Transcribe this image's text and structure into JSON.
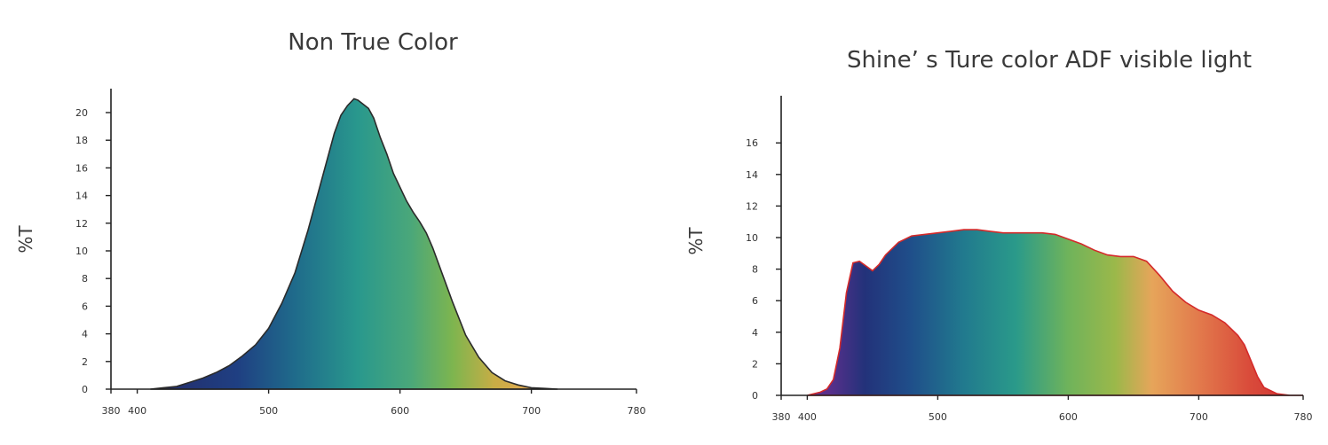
{
  "chart_data": [
    {
      "type": "area",
      "title": "Non True Color",
      "xlabel": "",
      "ylabel": "%T",
      "xlim": [
        380,
        780
      ],
      "ylim": [
        0,
        22
      ],
      "xticks": [
        380,
        400,
        500,
        600,
        700,
        780
      ],
      "yticks": [
        0,
        2,
        4,
        6,
        8,
        10,
        12,
        14,
        16,
        18,
        20
      ],
      "outline_color": "#2b2b2b",
      "grid": false,
      "series": [
        {
          "x": [
            410,
            420,
            430,
            440,
            450,
            460,
            470,
            480,
            490,
            500,
            510,
            520,
            530,
            540,
            550,
            555,
            560,
            565,
            568,
            572,
            576,
            580,
            585,
            590,
            595,
            600,
            605,
            610,
            615,
            620,
            625,
            630,
            640,
            650,
            660,
            670,
            680,
            690,
            700,
            710,
            720
          ],
          "y": [
            0.0,
            0.1,
            0.2,
            0.5,
            0.8,
            1.2,
            1.7,
            2.4,
            3.2,
            4.4,
            6.2,
            8.4,
            11.5,
            15.0,
            18.5,
            19.8,
            20.5,
            21.0,
            20.9,
            20.6,
            20.3,
            19.6,
            18.2,
            17.0,
            15.6,
            14.6,
            13.6,
            12.8,
            12.1,
            11.3,
            10.2,
            8.9,
            6.3,
            3.9,
            2.3,
            1.2,
            0.6,
            0.3,
            0.1,
            0.05,
            0.0
          ]
        }
      ]
    },
    {
      "type": "area",
      "title": "Shine’ s Ture color ADF visible light",
      "xlabel": "",
      "ylabel": "%T",
      "xlim": [
        380,
        780
      ],
      "ylim": [
        0,
        19
      ],
      "xticks": [
        380,
        400,
        500,
        600,
        700,
        780
      ],
      "yticks": [
        0,
        2,
        4,
        6,
        8,
        10,
        12,
        14,
        16
      ],
      "outline_color": "#d42a2a",
      "grid": false,
      "series": [
        {
          "x": [
            400,
            410,
            415,
            420,
            425,
            430,
            435,
            440,
            445,
            450,
            455,
            460,
            470,
            480,
            490,
            500,
            510,
            520,
            530,
            540,
            550,
            560,
            570,
            580,
            590,
            600,
            610,
            620,
            630,
            640,
            650,
            660,
            670,
            680,
            690,
            700,
            710,
            720,
            730,
            735,
            740,
            745,
            750,
            760,
            770,
            780
          ],
          "y": [
            0.0,
            0.2,
            0.4,
            1.0,
            3.0,
            6.5,
            8.4,
            8.5,
            8.2,
            7.9,
            8.3,
            8.9,
            9.7,
            10.1,
            10.2,
            10.3,
            10.4,
            10.5,
            10.5,
            10.4,
            10.3,
            10.3,
            10.3,
            10.3,
            10.2,
            9.9,
            9.6,
            9.2,
            8.9,
            8.8,
            8.8,
            8.5,
            7.6,
            6.6,
            5.9,
            5.4,
            5.1,
            4.6,
            3.8,
            3.2,
            2.2,
            1.2,
            0.5,
            0.1,
            0.0,
            0.0
          ]
        }
      ]
    }
  ]
}
